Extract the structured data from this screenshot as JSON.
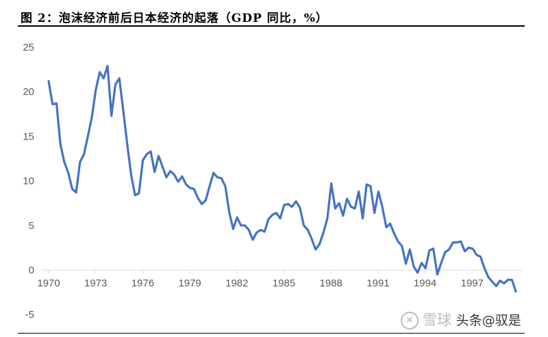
{
  "header": {
    "title": "图 2：泡沫经济前后日本经济的起落（GDP 同比，%）"
  },
  "watermark": {
    "brand": "雪球",
    "handle": "头条@驭是"
  },
  "chart_data": {
    "type": "line",
    "title": "",
    "xlabel": "",
    "ylabel": "",
    "ylim": [
      -5,
      25
    ],
    "xlim": [
      1970,
      2000
    ],
    "yticks": [
      -5,
      0,
      5,
      10,
      15,
      20,
      25
    ],
    "xticks": [
      "1970",
      "1973",
      "1976",
      "1979",
      "1982",
      "1985",
      "1988",
      "1991",
      "1994",
      "1997"
    ],
    "grid": false,
    "legend": "none",
    "color": "#4472C4",
    "series": [
      {
        "values": [
          21.2,
          18.6,
          18.7,
          14.1,
          12.1,
          10.9,
          9.1,
          8.7,
          12.1,
          13.0,
          15.0,
          17.1,
          20.2,
          22.2,
          21.5,
          22.9,
          17.3,
          20.8,
          21.5,
          17.9,
          14.2,
          10.7,
          8.4,
          8.6,
          12.3,
          13.0,
          13.3,
          11.0,
          12.8,
          11.6,
          10.4,
          11.1,
          10.7,
          9.9,
          10.5,
          9.6,
          9.2,
          9.1,
          8.1,
          7.4,
          7.8,
          9.4,
          10.9,
          10.4,
          10.3,
          9.4,
          6.5,
          4.6,
          5.9,
          5.0,
          5.0,
          4.5,
          3.4,
          4.2,
          4.5,
          4.3,
          5.7,
          6.2,
          6.4,
          5.8,
          7.3,
          7.4,
          7.1,
          7.7,
          7.0,
          5.0,
          4.5,
          3.5,
          2.3,
          2.9,
          4.2,
          5.8,
          9.7,
          6.9,
          7.5,
          6.1,
          8.0,
          7.1,
          6.9,
          8.8,
          5.8,
          9.6,
          9.4,
          6.4,
          8.8,
          7.1,
          4.8,
          5.2,
          4.1,
          3.2,
          2.7,
          0.7,
          2.3,
          0.4,
          -0.3,
          0.8,
          0.2,
          2.2,
          2.4,
          -0.5,
          0.8,
          2.0,
          2.3,
          3.1,
          3.1,
          3.2,
          2.1,
          2.5,
          2.4,
          1.7,
          1.5,
          0.2,
          -0.8,
          -1.3,
          -1.8,
          -1.2,
          -1.5,
          -1.1,
          -1.1,
          -2.4
        ]
      }
    ]
  }
}
